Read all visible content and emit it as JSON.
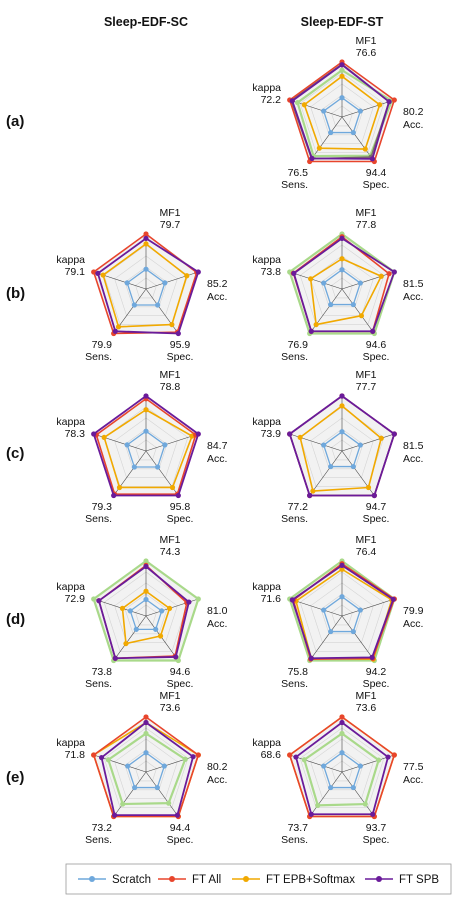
{
  "columns": [
    "Sleep-EDF-SC",
    "Sleep-EDF-ST"
  ],
  "rows": [
    "(a)",
    "(b)",
    "(c)",
    "(d)",
    "(e)"
  ],
  "axes": [
    "MF1",
    "Acc.",
    "Spec.",
    "Sens.",
    "kappa"
  ],
  "series": [
    {
      "name": "Scratch",
      "color": "#6fa8dc"
    },
    {
      "name": "FT All",
      "color": "#e8452c"
    },
    {
      "name": "FT EPB+Softmax",
      "color": "#f1a900"
    },
    {
      "name": "FT SPB",
      "color": "#6a1b9a"
    }
  ],
  "extra_series_colors": {
    "light_green": "#a9d98a",
    "gray": "#7a6a6a"
  },
  "chart_data": [
    {
      "type": "radar",
      "row": "(a)",
      "column": "Sleep-EDF-ST",
      "max_values": {
        "MF1": "76.6",
        "Acc.": "80.2",
        "Spec.": "94.4",
        "Sens.": "76.5",
        "kappa": "72.2"
      },
      "relative_radius": {
        "Scratch": [
          0.35,
          0.35,
          0.35,
          0.35,
          0.35
        ],
        "FT All": [
          1.0,
          1.0,
          1.0,
          1.0,
          1.0
        ],
        "FT EPB+Softmax": [
          0.74,
          0.72,
          0.72,
          0.7,
          0.72
        ],
        "FT SPB": [
          0.95,
          0.9,
          0.94,
          0.93,
          0.95
        ],
        "light_green": [
          0.85,
          0.95,
          0.87,
          0.88,
          0.85
        ],
        "gray": [
          0.96,
          0.9,
          0.9,
          0.94,
          0.97
        ]
      }
    },
    {
      "type": "radar",
      "row": "(b)",
      "column": "Sleep-EDF-SC",
      "max_values": {
        "MF1": "79.7",
        "Acc.": "85.2",
        "Spec.": "95.9",
        "Sens.": "79.9",
        "kappa": "79.1"
      },
      "relative_radius": {
        "Scratch": [
          0.36,
          0.36,
          0.36,
          0.36,
          0.36
        ],
        "FT All": [
          1.0,
          0.97,
          0.97,
          1.0,
          1.0
        ],
        "FT EPB+Softmax": [
          0.82,
          0.78,
          0.8,
          0.85,
          0.82
        ],
        "FT SPB": [
          0.92,
          1.0,
          1.0,
          0.95,
          0.92
        ]
      }
    },
    {
      "type": "radar",
      "row": "(b)",
      "column": "Sleep-EDF-ST",
      "max_values": {
        "MF1": "77.8",
        "Acc.": "81.5",
        "Spec.": "94.6",
        "Sens.": "76.9",
        "kappa": "73.8"
      },
      "relative_radius": {
        "Scratch": [
          0.35,
          0.35,
          0.35,
          0.35,
          0.35
        ],
        "FT All": [
          0.95,
          0.9,
          0.95,
          0.95,
          0.93
        ],
        "FT EPB+Softmax": [
          0.55,
          0.75,
          0.6,
          0.8,
          0.6
        ],
        "FT SPB": [
          0.92,
          1.0,
          0.95,
          0.95,
          0.92
        ],
        "light_green": [
          1.0,
          1.0,
          1.0,
          1.0,
          1.0
        ]
      }
    },
    {
      "type": "radar",
      "row": "(c)",
      "column": "Sleep-EDF-SC",
      "max_values": {
        "MF1": "78.8",
        "Acc.": "84.7",
        "Spec.": "95.8",
        "Sens.": "79.3",
        "kappa": "78.3"
      },
      "relative_radius": {
        "Scratch": [
          0.36,
          0.36,
          0.36,
          0.36,
          0.36
        ],
        "FT All": [
          0.95,
          0.95,
          0.97,
          0.97,
          0.95
        ],
        "FT EPB+Softmax": [
          0.75,
          0.88,
          0.82,
          0.82,
          0.8
        ],
        "FT SPB": [
          1.0,
          1.0,
          1.0,
          1.0,
          1.0
        ]
      }
    },
    {
      "type": "radar",
      "row": "(c)",
      "column": "Sleep-EDF-ST",
      "max_values": {
        "MF1": "77.7",
        "Acc.": "81.5",
        "Spec.": "94.7",
        "Sens.": "77.2",
        "kappa": "73.9"
      },
      "relative_radius": {
        "Scratch": [
          0.35,
          0.35,
          0.35,
          0.35,
          0.35
        ],
        "FT All": [
          1.0,
          1.0,
          1.0,
          1.0,
          1.0
        ],
        "FT EPB+Softmax": [
          0.82,
          0.75,
          0.82,
          0.9,
          0.8
        ],
        "FT SPB": [
          1.0,
          1.0,
          1.0,
          1.0,
          1.0
        ],
        "gray": [
          1.0,
          1.0,
          1.0,
          1.0,
          1.0
        ]
      }
    },
    {
      "type": "radar",
      "row": "(d)",
      "column": "Sleep-EDF-SC",
      "max_values": {
        "MF1": "74.3",
        "Acc.": "81.0",
        "Spec.": "94.6",
        "Sens.": "73.8",
        "kappa": "72.9"
      },
      "relative_radius": {
        "Scratch": [
          0.3,
          0.3,
          0.3,
          0.3,
          0.3
        ],
        "FT All": [
          0.92,
          0.78,
          0.9,
          0.95,
          0.9
        ],
        "FT EPB+Softmax": [
          0.45,
          0.45,
          0.45,
          0.62,
          0.45
        ],
        "FT SPB": [
          0.9,
          0.82,
          0.92,
          0.95,
          0.9
        ],
        "light_green": [
          1.0,
          1.0,
          1.0,
          1.0,
          1.0
        ]
      }
    },
    {
      "type": "radar",
      "row": "(d)",
      "column": "Sleep-EDF-ST",
      "max_values": {
        "MF1": "76.4",
        "Acc.": "79.9",
        "Spec.": "94.2",
        "Sens.": "75.8",
        "kappa": "71.6"
      },
      "relative_radius": {
        "Scratch": [
          0.35,
          0.35,
          0.35,
          0.35,
          0.35
        ],
        "FT All": [
          0.95,
          1.0,
          0.95,
          0.97,
          0.93
        ],
        "FT EPB+Softmax": [
          0.85,
          0.95,
          0.97,
          0.95,
          0.88
        ],
        "FT SPB": [
          0.92,
          0.98,
          0.93,
          0.95,
          0.95
        ],
        "light_green": [
          1.0,
          1.0,
          1.0,
          1.0,
          1.0
        ]
      }
    },
    {
      "type": "radar",
      "row": "(e)",
      "column": "Sleep-EDF-SC",
      "max_values": {
        "MF1": "73.6",
        "Acc.": "80.2",
        "Spec.": "94.4",
        "Sens.": "73.2",
        "kappa": "71.8"
      },
      "relative_radius": {
        "Scratch": [
          0.35,
          0.35,
          0.35,
          0.35,
          0.35
        ],
        "FT All": [
          1.0,
          1.0,
          1.0,
          1.0,
          1.0
        ],
        "FT EPB+Softmax": [
          0.9,
          1.0,
          1.0,
          1.0,
          1.0
        ],
        "FT SPB": [
          0.9,
          0.9,
          0.97,
          0.97,
          0.85
        ],
        "light_green": [
          0.7,
          0.75,
          0.7,
          0.72,
          0.72
        ]
      }
    },
    {
      "type": "radar",
      "row": "(e)",
      "column": "Sleep-EDF-ST",
      "max_values": {
        "MF1": "73.6",
        "Acc.": "77.5",
        "Spec.": "93.7",
        "Sens.": "73.7",
        "kappa": "68.6"
      },
      "relative_radius": {
        "Scratch": [
          0.35,
          0.35,
          0.35,
          0.35,
          0.35
        ],
        "FT All": [
          1.0,
          1.0,
          1.0,
          1.0,
          1.0
        ],
        "FT EPB+Softmax": [
          1.0,
          1.0,
          1.0,
          1.0,
          1.0
        ],
        "FT SPB": [
          0.9,
          0.88,
          0.95,
          0.95,
          0.88
        ],
        "light_green": [
          0.7,
          0.7,
          0.72,
          0.75,
          0.72
        ]
      }
    }
  ]
}
